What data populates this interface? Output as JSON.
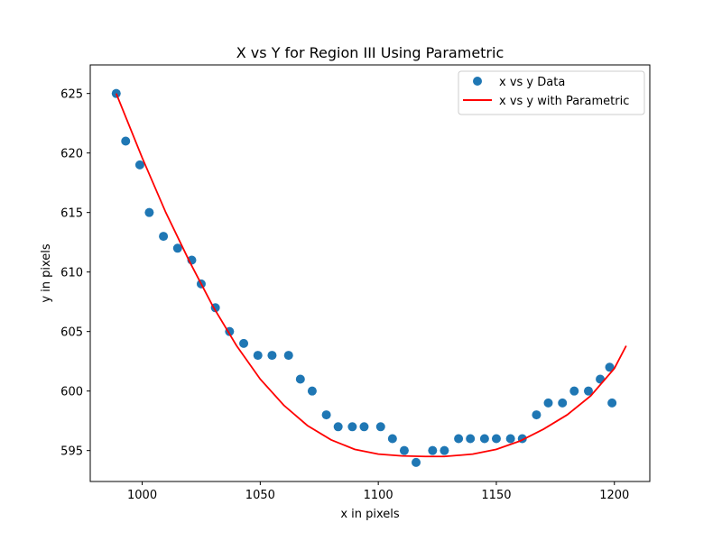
{
  "chart_data": {
    "type": "scatter",
    "title": "X vs Y for Region III Using Parametric",
    "xlabel": "x in pixels",
    "ylabel": "y in pixels",
    "xlim": [
      978,
      1215
    ],
    "ylim": [
      592.4,
      627.4
    ],
    "xticks": [
      1000,
      1050,
      1100,
      1150,
      1200
    ],
    "yticks": [
      595,
      600,
      605,
      610,
      615,
      620,
      625
    ],
    "grid": false,
    "legend_position": "top-right",
    "series": [
      {
        "name": "x vs y Data",
        "kind": "scatter",
        "color": "#1f77b4",
        "points": [
          [
            989,
            625
          ],
          [
            993,
            621
          ],
          [
            999,
            619
          ],
          [
            1003,
            615
          ],
          [
            1009,
            613
          ],
          [
            1015,
            612
          ],
          [
            1021,
            611
          ],
          [
            1025,
            609
          ],
          [
            1031,
            607
          ],
          [
            1037,
            605
          ],
          [
            1043,
            604
          ],
          [
            1049,
            603
          ],
          [
            1055,
            603
          ],
          [
            1062,
            603
          ],
          [
            1067,
            601
          ],
          [
            1072,
            600
          ],
          [
            1078,
            598
          ],
          [
            1083,
            597
          ],
          [
            1089,
            597
          ],
          [
            1094,
            597
          ],
          [
            1101,
            597
          ],
          [
            1106,
            596
          ],
          [
            1111,
            595
          ],
          [
            1116,
            594
          ],
          [
            1123,
            595
          ],
          [
            1128,
            595
          ],
          [
            1134,
            596
          ],
          [
            1139,
            596
          ],
          [
            1145,
            596
          ],
          [
            1150,
            596
          ],
          [
            1156,
            596
          ],
          [
            1161,
            596
          ],
          [
            1167,
            598
          ],
          [
            1172,
            599
          ],
          [
            1178,
            599
          ],
          [
            1183,
            600
          ],
          [
            1189,
            600
          ],
          [
            1194,
            601
          ],
          [
            1198,
            602
          ],
          [
            1199,
            599
          ]
        ]
      },
      {
        "name": "x vs y with Parametric",
        "kind": "line",
        "color": "#ff0000",
        "points": [
          [
            989,
            625
          ],
          [
            1000,
            619.6
          ],
          [
            1010,
            615.0
          ],
          [
            1020,
            610.9
          ],
          [
            1030,
            607.1
          ],
          [
            1040,
            603.8
          ],
          [
            1050,
            601.0
          ],
          [
            1060,
            598.8
          ],
          [
            1070,
            597.1
          ],
          [
            1080,
            595.9
          ],
          [
            1090,
            595.1
          ],
          [
            1100,
            594.7
          ],
          [
            1110,
            594.55
          ],
          [
            1120,
            594.5
          ],
          [
            1128,
            594.5
          ],
          [
            1140,
            594.7
          ],
          [
            1150,
            595.1
          ],
          [
            1160,
            595.8
          ],
          [
            1170,
            596.8
          ],
          [
            1180,
            598.0
          ],
          [
            1190,
            599.6
          ],
          [
            1200,
            601.9
          ],
          [
            1205,
            603.8
          ]
        ]
      }
    ]
  }
}
